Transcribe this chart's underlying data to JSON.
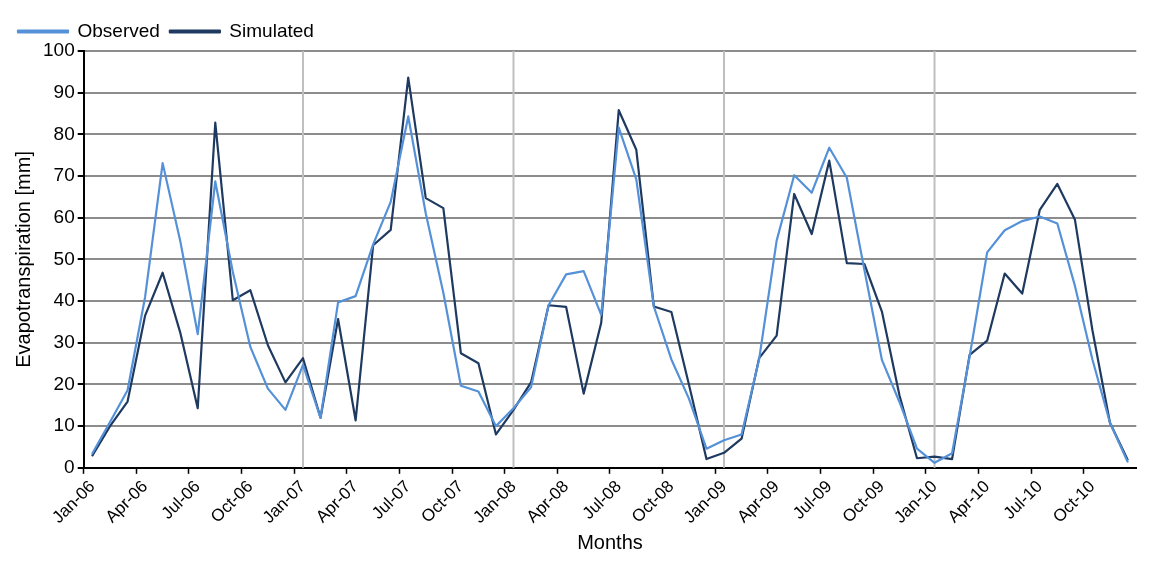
{
  "chart_data": {
    "type": "line",
    "xlabel": "Months",
    "ylabel": "Evapotranspiration [mm]",
    "categories": [
      "Jan-06",
      null,
      null,
      "Apr-06",
      null,
      null,
      "Jul-06",
      null,
      null,
      "Oct-06",
      null,
      null,
      "Jan-07",
      null,
      null,
      "Apr-07",
      null,
      null,
      "Jul-07",
      null,
      null,
      "Oct-07",
      null,
      null,
      "Jan-08",
      null,
      null,
      "Apr-08",
      null,
      null,
      "Jul-08",
      null,
      null,
      "Oct-08",
      null,
      null,
      "Jan-09",
      null,
      null,
      "Apr-09",
      null,
      null,
      "Jul-09",
      null,
      null,
      "Oct-09",
      null,
      null,
      "Jan-10",
      null,
      null,
      "Apr-10",
      null,
      null,
      "Jul-10",
      null,
      null,
      "Oct-10",
      null,
      null
    ],
    "series": [
      {
        "name": "Observed",
        "color": "#5591d8",
        "values": [
          3.5,
          11,
          18.6,
          41,
          73.1,
          54.5,
          32.1,
          68.7,
          47,
          29,
          19,
          13.9,
          24.7,
          12,
          39.7,
          41.2,
          53.6,
          63.8,
          84.3,
          61,
          42,
          19.7,
          18.3,
          10,
          14.3,
          19.3,
          39,
          46.4,
          47.2,
          36.7,
          81.6,
          69.2,
          38.7,
          26,
          16.6,
          4.6,
          6.6,
          8,
          26,
          54.5,
          70.2,
          66,
          76.8,
          69.6,
          47.5,
          25.9,
          15.8,
          4.6,
          1.2,
          3.5,
          26.7,
          51.7,
          57,
          59.2,
          60.3,
          58.6,
          43.7,
          26,
          10.8,
          1.5
        ]
      },
      {
        "name": "Simulated",
        "color": "#1f3a60",
        "values": [
          3,
          10,
          15.9,
          36.5,
          46.8,
          32.5,
          14.3,
          82.8,
          40.2,
          42.6,
          29.4,
          20.5,
          26.3,
          12,
          35.7,
          11.4,
          53.4,
          57.1,
          93.6,
          64.7,
          62.3,
          27.5,
          25.1,
          8,
          13.9,
          20.5,
          39,
          38.6,
          17.8,
          34.8,
          85.8,
          76.3,
          38.7,
          37.4,
          20,
          2.1,
          3.6,
          7,
          26.3,
          31.7,
          65.7,
          56.1,
          73.7,
          49.1,
          48.9,
          37.5,
          17.4,
          2.3,
          2.7,
          2.1,
          27.1,
          30.5,
          46.6,
          41.8,
          61.9,
          68.1,
          59.6,
          33,
          10.8,
          2
        ]
      }
    ],
    "ylim": [
      0,
      100
    ],
    "yticks": [
      0,
      10,
      20,
      30,
      40,
      50,
      60,
      70,
      80,
      90,
      100
    ],
    "grid": "y",
    "legend": "top left",
    "marker": "none",
    "line_style": "solid",
    "ref_lines": [
      {
        "axis": "x",
        "value": "Jan-07",
        "color": "#bfbfbf"
      },
      {
        "axis": "x",
        "value": "Jan-08",
        "color": "#bfbfbf"
      },
      {
        "axis": "x",
        "value": "Jan-09",
        "color": "#bfbfbf"
      },
      {
        "axis": "x",
        "value": "Jan-10",
        "color": "#bfbfbf"
      }
    ]
  }
}
